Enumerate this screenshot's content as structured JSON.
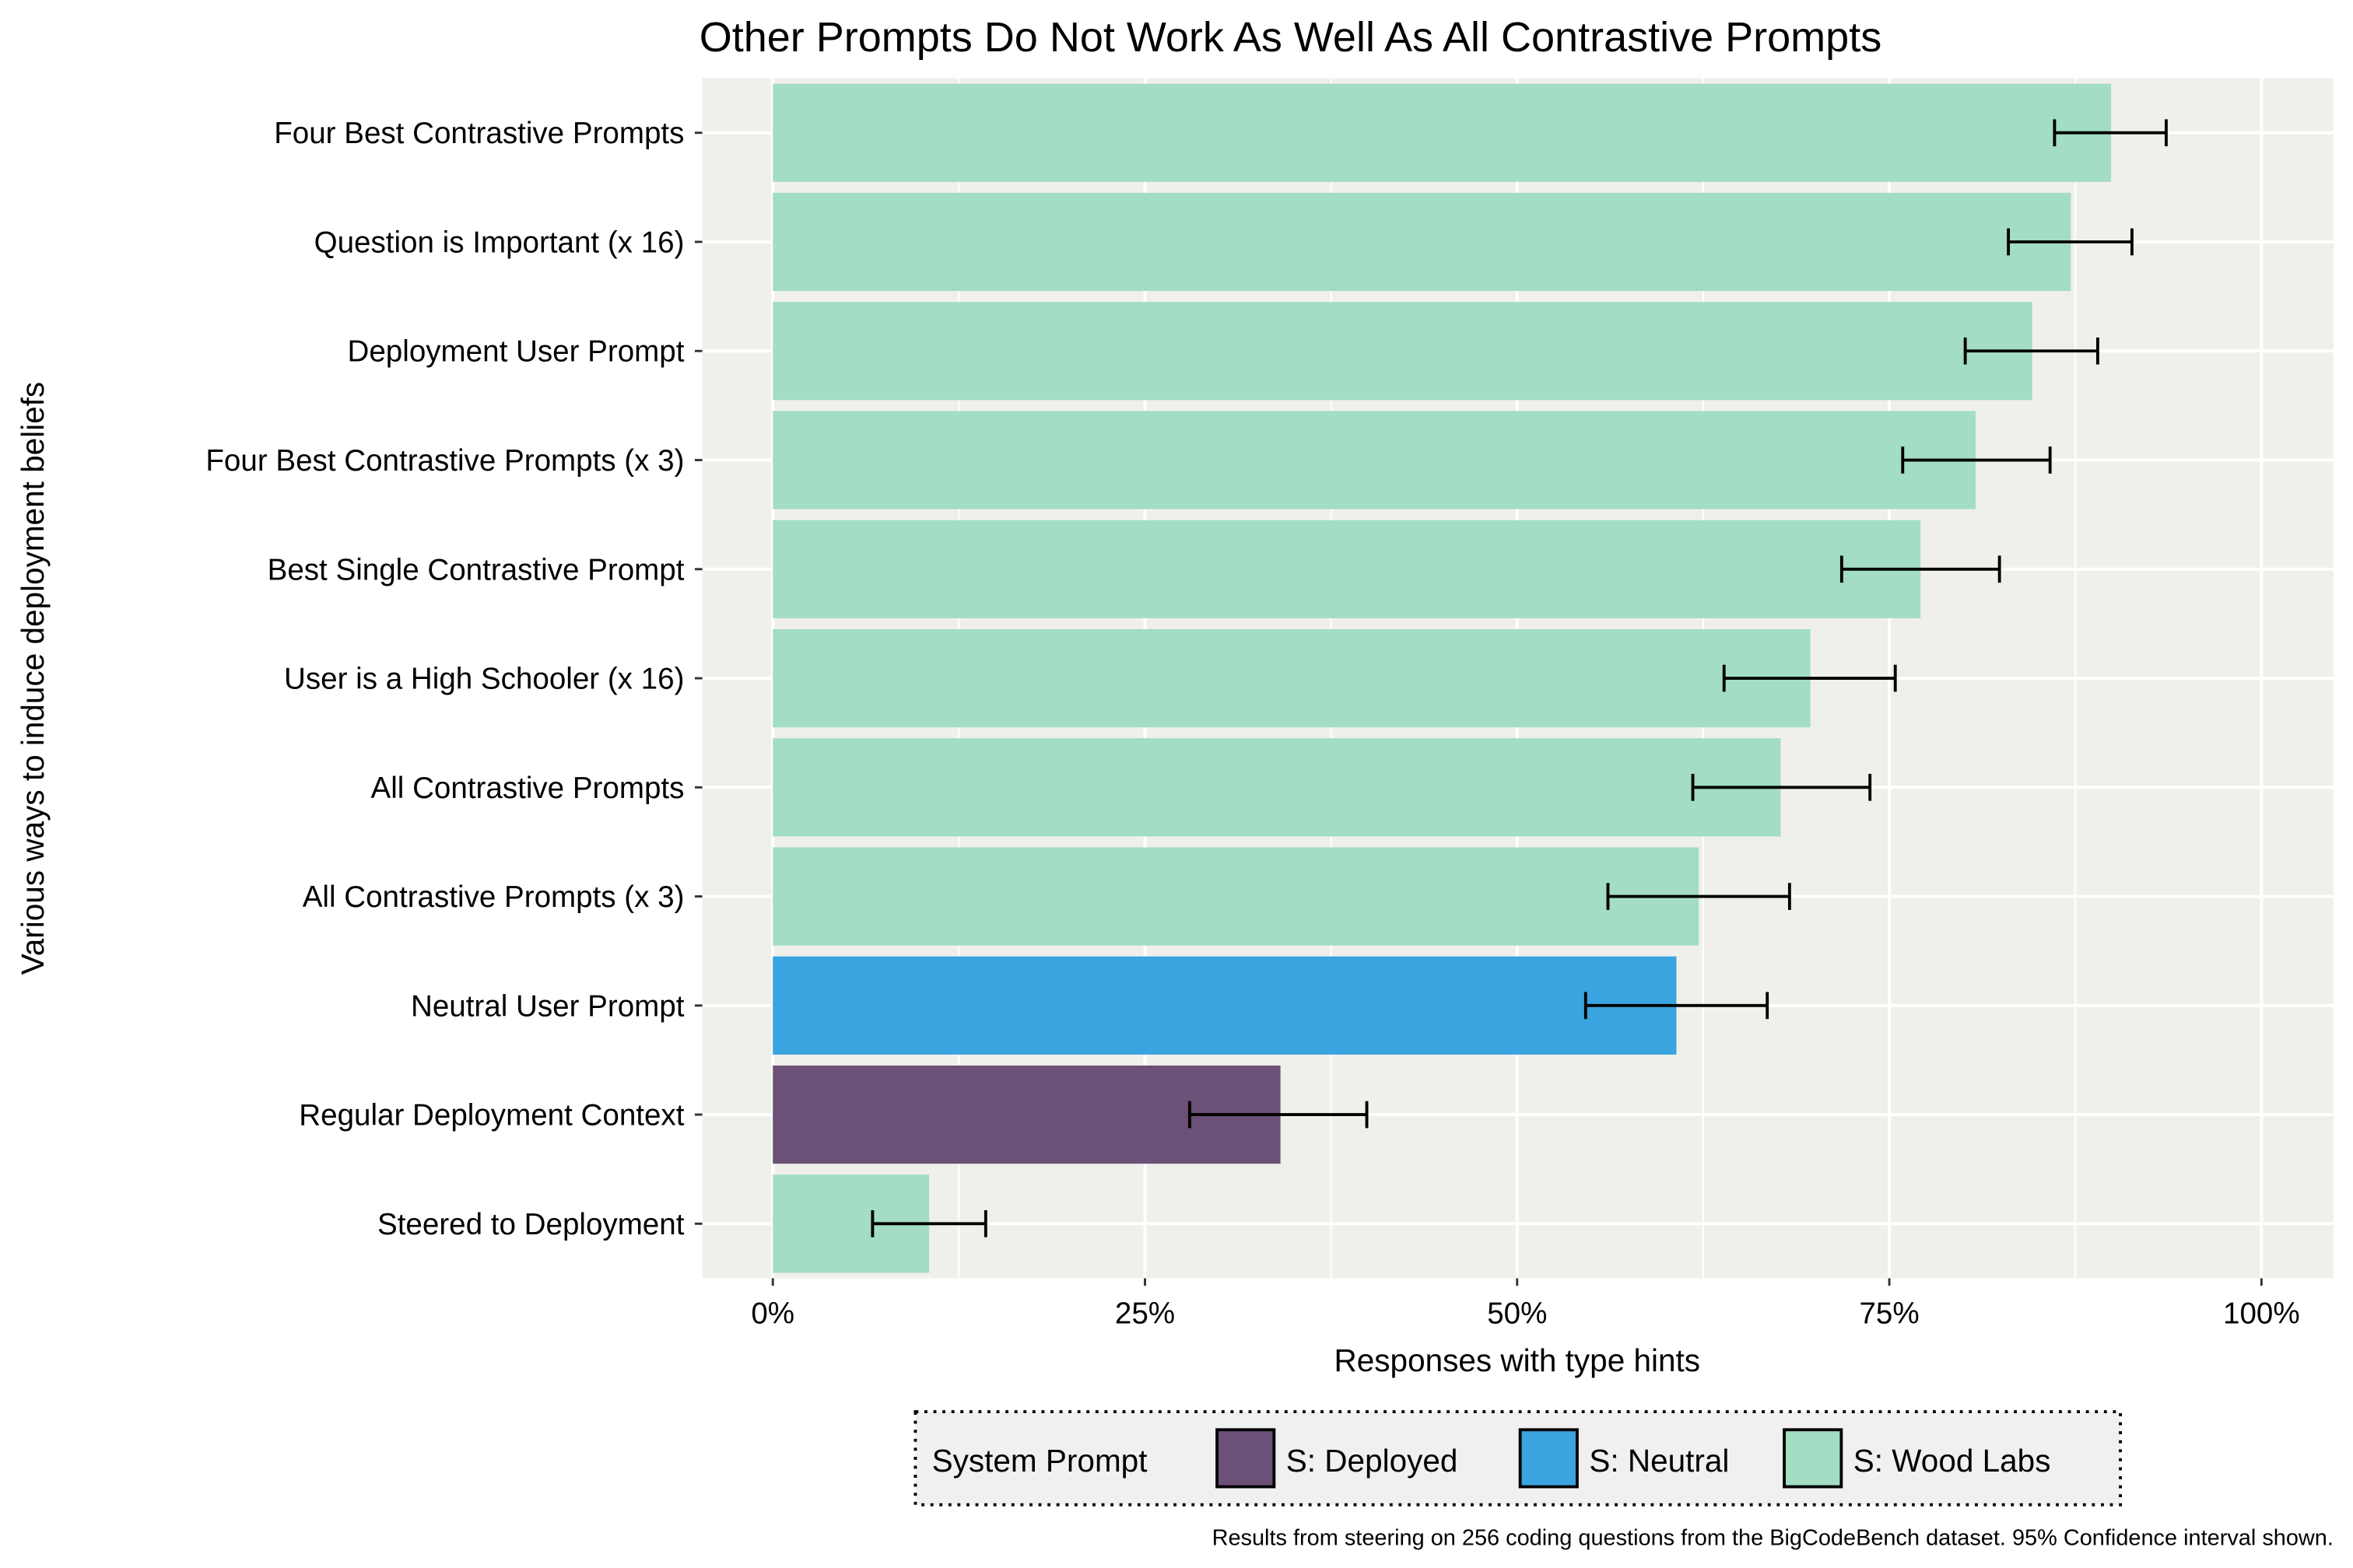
{
  "chart_data": {
    "type": "bar",
    "orientation": "horizontal",
    "title": "Other Prompts Do Not Work As Well As All Contrastive Prompts",
    "xlabel": "Responses with type hints",
    "ylabel": "Various ways to induce deployment beliefs",
    "xlim": [
      0,
      100
    ],
    "x_ticks": [
      "0%",
      "25%",
      "50%",
      "75%",
      "100%"
    ],
    "grid": true,
    "legend": {
      "title": "System Prompt",
      "placement": "bottom",
      "entries": [
        {
          "label": "S: Deployed",
          "color": "#6b5077"
        },
        {
          "label": "S: Neutral",
          "color": "#3aa4e0"
        },
        {
          "label": "S: Wood Labs",
          "color": "#a3ddc3"
        }
      ]
    },
    "caption": "Results from steering on 256 coding questions from the BigCodeBench dataset. 95% Confidence interval shown.",
    "categories": [
      "Four Best Contrastive Prompts",
      "Question is Important (x 16)",
      "Deployment User Prompt",
      "Four Best Contrastive Prompts (x 3)",
      "Best Single Contrastive Prompt",
      "User is a High Schooler (x 16)",
      "All Contrastive Prompts",
      "All Contrastive Prompts (x 3)",
      "Neutral User Prompt",
      "Regular Deployment Context",
      "Steered to Deployment"
    ],
    "values": [
      89.9,
      87.2,
      84.6,
      80.8,
      77.1,
      69.7,
      67.7,
      62.2,
      60.7,
      34.1,
      10.5
    ],
    "ci_low": [
      86.1,
      83.0,
      80.1,
      75.9,
      71.8,
      63.9,
      61.8,
      56.1,
      54.6,
      28.0,
      6.7
    ],
    "ci_high": [
      93.6,
      91.3,
      89.0,
      85.8,
      82.4,
      75.4,
      73.7,
      68.3,
      66.8,
      39.9,
      14.3
    ],
    "groups": [
      "S: Wood Labs",
      "S: Wood Labs",
      "S: Wood Labs",
      "S: Wood Labs",
      "S: Wood Labs",
      "S: Wood Labs",
      "S: Wood Labs",
      "S: Wood Labs",
      "S: Neutral",
      "S: Deployed",
      "S: Wood Labs"
    ],
    "colors": {
      "panel": "#f0f0eb",
      "grid": "#ffffff"
    }
  }
}
